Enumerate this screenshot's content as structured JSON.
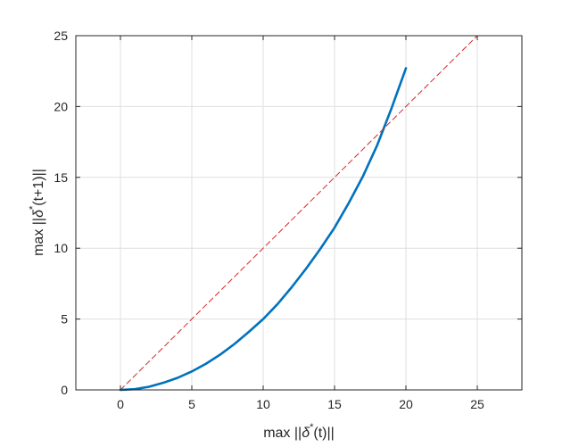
{
  "chart_data": {
    "type": "line",
    "title": "",
    "xlabel": {
      "prefix": "max ||",
      "symbol": "δ",
      "superscript": "*",
      "suffix": "(t)||"
    },
    "ylabel": {
      "prefix": "max ||",
      "symbol": "δ",
      "superscript": "*",
      "suffix": "(t+1)||"
    },
    "xlim": [
      -3.125,
      28.125
    ],
    "ylim": [
      0,
      25
    ],
    "xticks": [
      0,
      5,
      10,
      15,
      20,
      25
    ],
    "yticks": [
      0,
      5,
      10,
      15,
      20,
      25
    ],
    "xtick_labels": [
      "0",
      "5",
      "10",
      "15",
      "20",
      "25"
    ],
    "ytick_labels": [
      "0",
      "5",
      "10",
      "15",
      "20",
      "25"
    ],
    "grid": true,
    "series": [
      {
        "style": "solid",
        "color": "#0072bd",
        "x": [
          0,
          1,
          2,
          3,
          4,
          5,
          6,
          7,
          8,
          9,
          10,
          11,
          12,
          13,
          14,
          15,
          16,
          17,
          18,
          19,
          20
        ],
        "y": [
          0,
          0.05,
          0.22,
          0.5,
          0.85,
          1.3,
          1.85,
          2.5,
          3.25,
          4.1,
          5.0,
          6.05,
          7.25,
          8.55,
          9.95,
          11.45,
          13.2,
          15.1,
          17.3,
          19.9,
          22.7
        ]
      },
      {
        "style": "dashed",
        "color": "#d62728",
        "x": [
          0,
          25
        ],
        "y": [
          0,
          25
        ]
      }
    ]
  }
}
